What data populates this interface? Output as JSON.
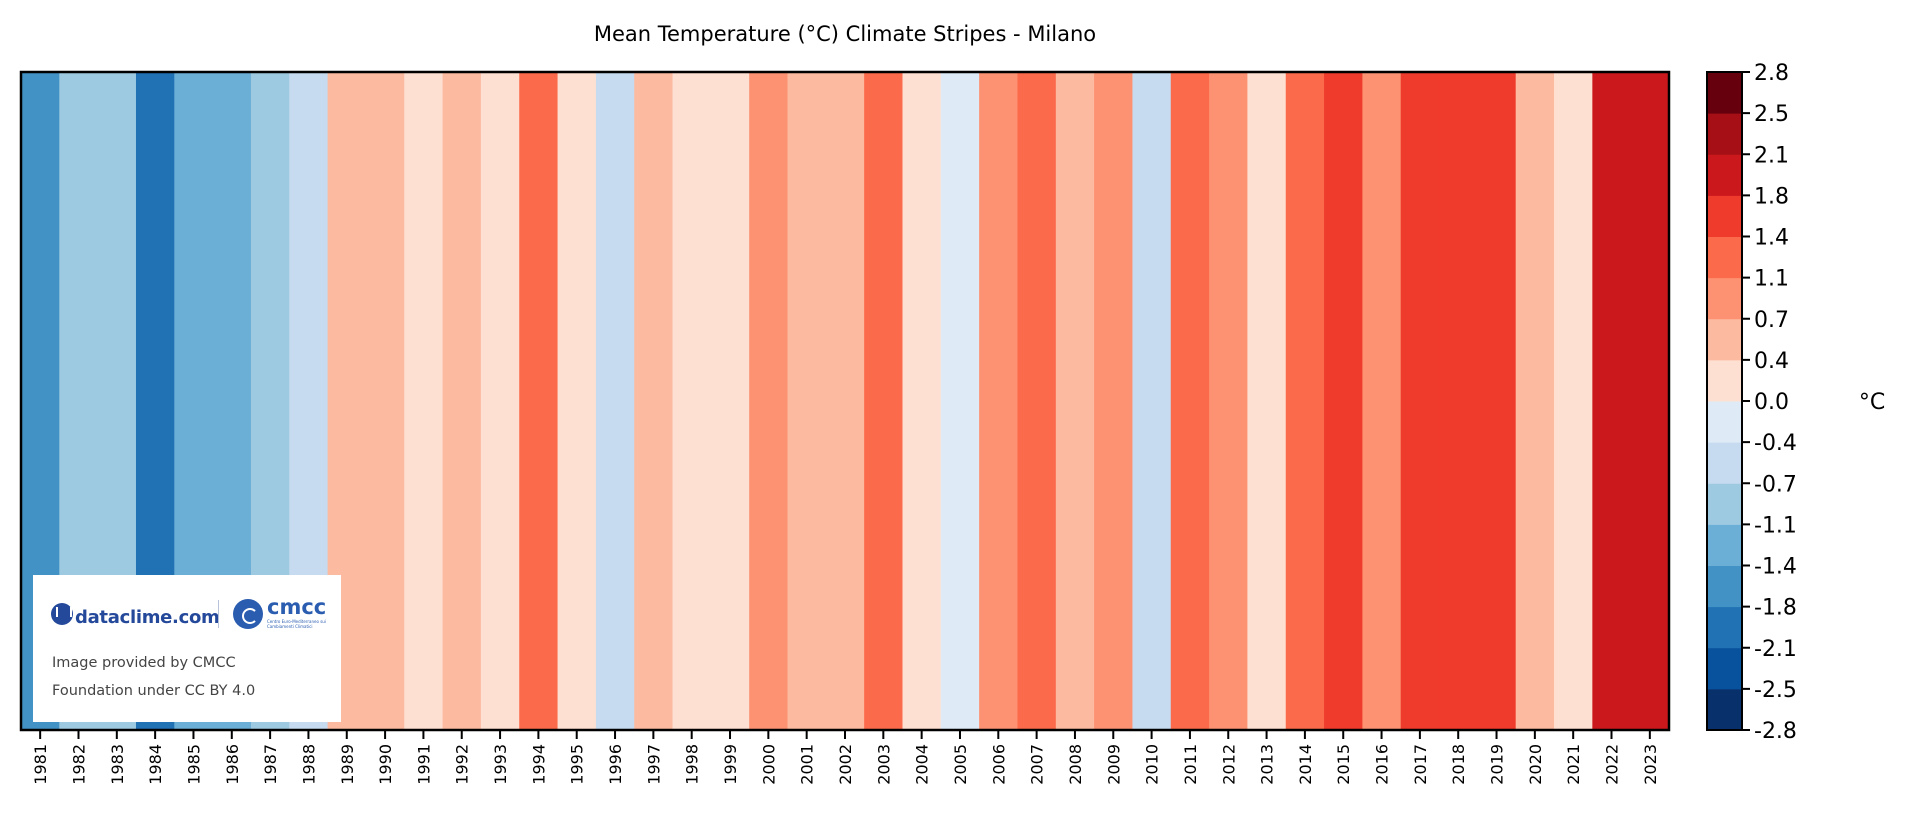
{
  "chart_data": {
    "type": "heatmap",
    "title": "Mean Temperature (°C) Climate Stripes - Milano",
    "xlabel": "",
    "ylabel": "",
    "colorbar_label": "°C",
    "colorbar_range": [
      -2.8,
      2.8
    ],
    "colorbar_edges": [
      -2.8,
      -2.45,
      -2.1,
      -1.75,
      -1.4,
      -1.05,
      -0.7,
      -0.35,
      0,
      0.35,
      0.7,
      1.05,
      1.4,
      1.75,
      2.1,
      2.45,
      2.8
    ],
    "colorbar_tick_labels": [
      "-2.8",
      "-2.5",
      "-2.1",
      "-1.8",
      "-1.4",
      "-1.1",
      "-0.7",
      "-0.4",
      "0.0",
      "0.4",
      "0.7",
      "1.1",
      "1.4",
      "1.8",
      "2.1",
      "2.5",
      "2.8"
    ],
    "colorbar_colors": [
      "#08306b",
      "#08519c",
      "#2171b5",
      "#4292c6",
      "#6baed6",
      "#9ecae1",
      "#c6dbef",
      "#deebf7",
      "#fee0d2",
      "#fcbba1",
      "#fc9272",
      "#fb6a4a",
      "#ef3b2c",
      "#cb181d",
      "#a50f15",
      "#67000d"
    ],
    "years": [
      "1981",
      "1982",
      "1983",
      "1984",
      "1985",
      "1986",
      "1987",
      "1988",
      "1989",
      "1990",
      "1991",
      "1992",
      "1993",
      "1994",
      "1995",
      "1996",
      "1997",
      "1998",
      "1999",
      "2000",
      "2001",
      "2002",
      "2003",
      "2004",
      "2005",
      "2006",
      "2007",
      "2008",
      "2009",
      "2010",
      "2011",
      "2012",
      "2013",
      "2014",
      "2015",
      "2016",
      "2017",
      "2018",
      "2019",
      "2020",
      "2021",
      "2022",
      "2023"
    ],
    "values": [
      -1.6,
      -0.9,
      -0.9,
      -1.9,
      -1.2,
      -1.2,
      -0.9,
      -0.5,
      0.5,
      0.5,
      0.2,
      0.5,
      0.2,
      1.2,
      0.2,
      -0.5,
      0.5,
      0.2,
      0.2,
      0.9,
      0.5,
      0.5,
      1.2,
      0.2,
      -0.2,
      0.9,
      1.2,
      0.5,
      0.9,
      -0.5,
      1.2,
      0.9,
      0.2,
      1.2,
      1.6,
      0.9,
      1.6,
      1.6,
      1.6,
      0.5,
      0.2,
      1.9,
      1.9
    ]
  },
  "watermark": {
    "logo_left": "dataclime.com",
    "logo_right": "cmcc",
    "logo_right_sub": "Centro Euro-Mediterraneo sui Cambiamenti Climatici",
    "caption_line1": "Image provided by CMCC",
    "caption_line2": "Foundation under CC BY 4.0"
  }
}
